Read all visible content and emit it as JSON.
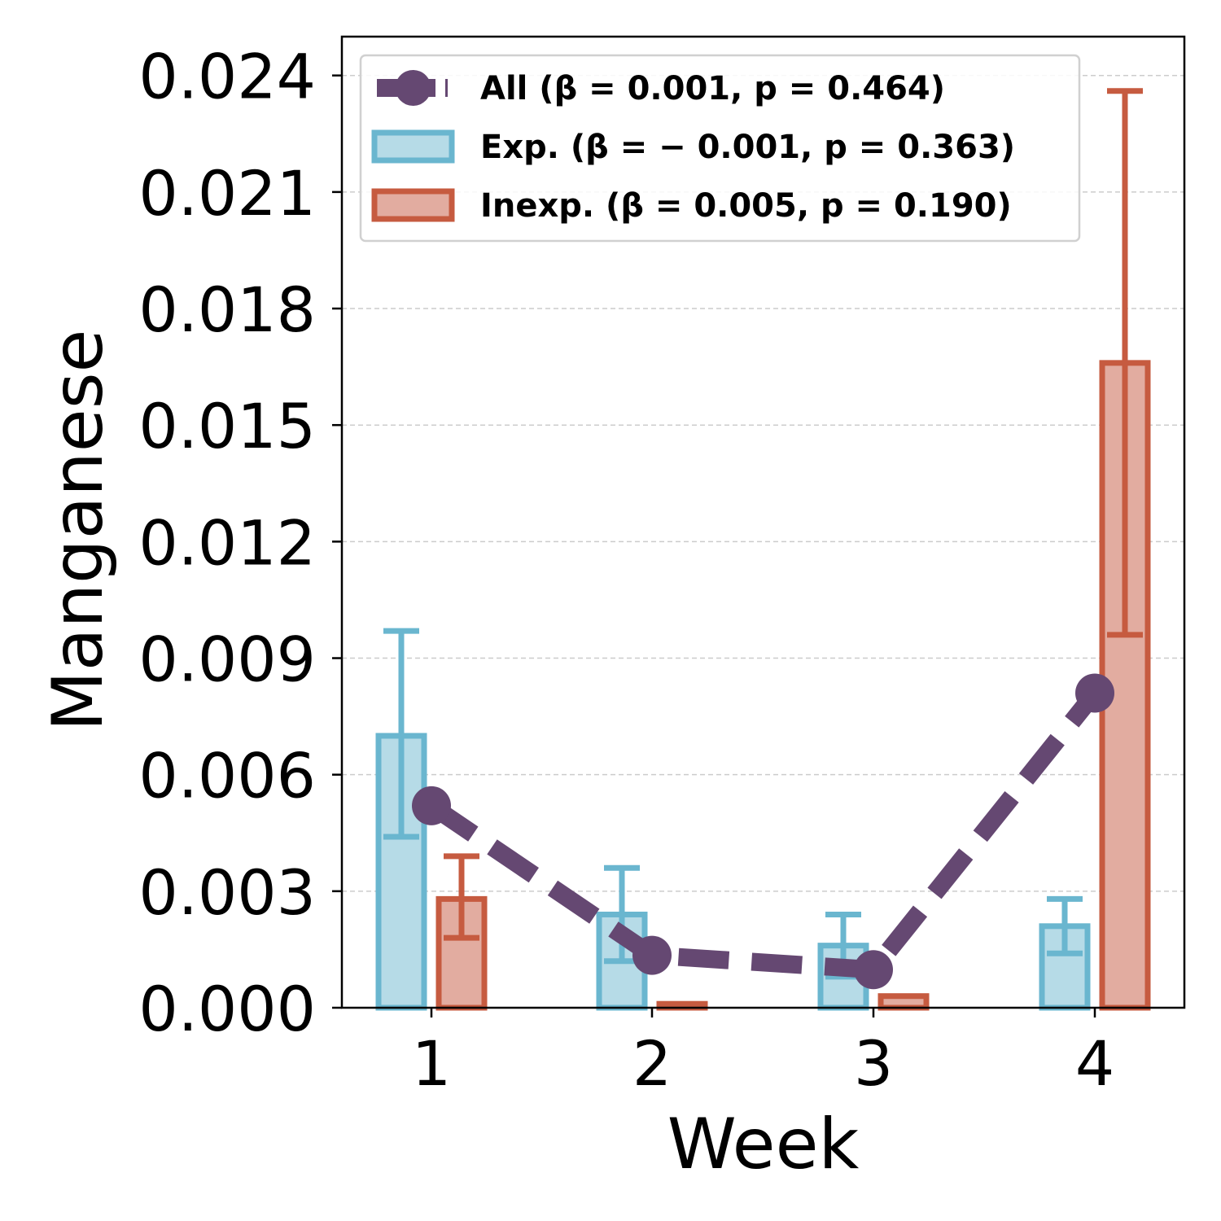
{
  "chart_data": {
    "type": "bar",
    "title": "",
    "xlabel": "Week",
    "ylabel": "Manganese",
    "categories": [
      "1",
      "2",
      "3",
      "4"
    ],
    "ylim": [
      0,
      0.025
    ],
    "yticks": [
      "0.000",
      "0.003",
      "0.006",
      "0.009",
      "0.012",
      "0.015",
      "0.018",
      "0.021",
      "0.024"
    ],
    "ytick_values": [
      0,
      0.003,
      0.006,
      0.009,
      0.012,
      0.015,
      0.018,
      0.021,
      0.024
    ],
    "grid": "y-dashed",
    "legend_position": "top-left",
    "series": [
      {
        "name": "All (β = 0.001, p = 0.464)",
        "kind": "line",
        "style": "dashed-with-markers",
        "color": "#654872",
        "values": [
          0.0052,
          0.00135,
          0.00098,
          0.0081
        ]
      },
      {
        "name": "Exp. (β = − 0.001, p = 0.363)",
        "kind": "bar",
        "edge_color": "#6ab6cf",
        "fill_color": "#b6dbe7",
        "values": [
          0.007,
          0.0024,
          0.0016,
          0.0021
        ],
        "error_low": [
          0.0044,
          0.0012,
          0.0008,
          0.0014
        ],
        "error_high": [
          0.0097,
          0.0036,
          0.0024,
          0.0028
        ]
      },
      {
        "name": "Inexp. (β = 0.005, p = 0.190)",
        "kind": "bar",
        "edge_color": "#c65b40",
        "fill_color": "#e2aca0",
        "values": [
          0.0028,
          0.0001,
          0.0003,
          0.0166
        ],
        "error_low": [
          0.0018,
          0.0001,
          0.0003,
          0.0096
        ],
        "error_high": [
          0.0039,
          0.0001,
          0.0003,
          0.0236
        ]
      }
    ]
  }
}
